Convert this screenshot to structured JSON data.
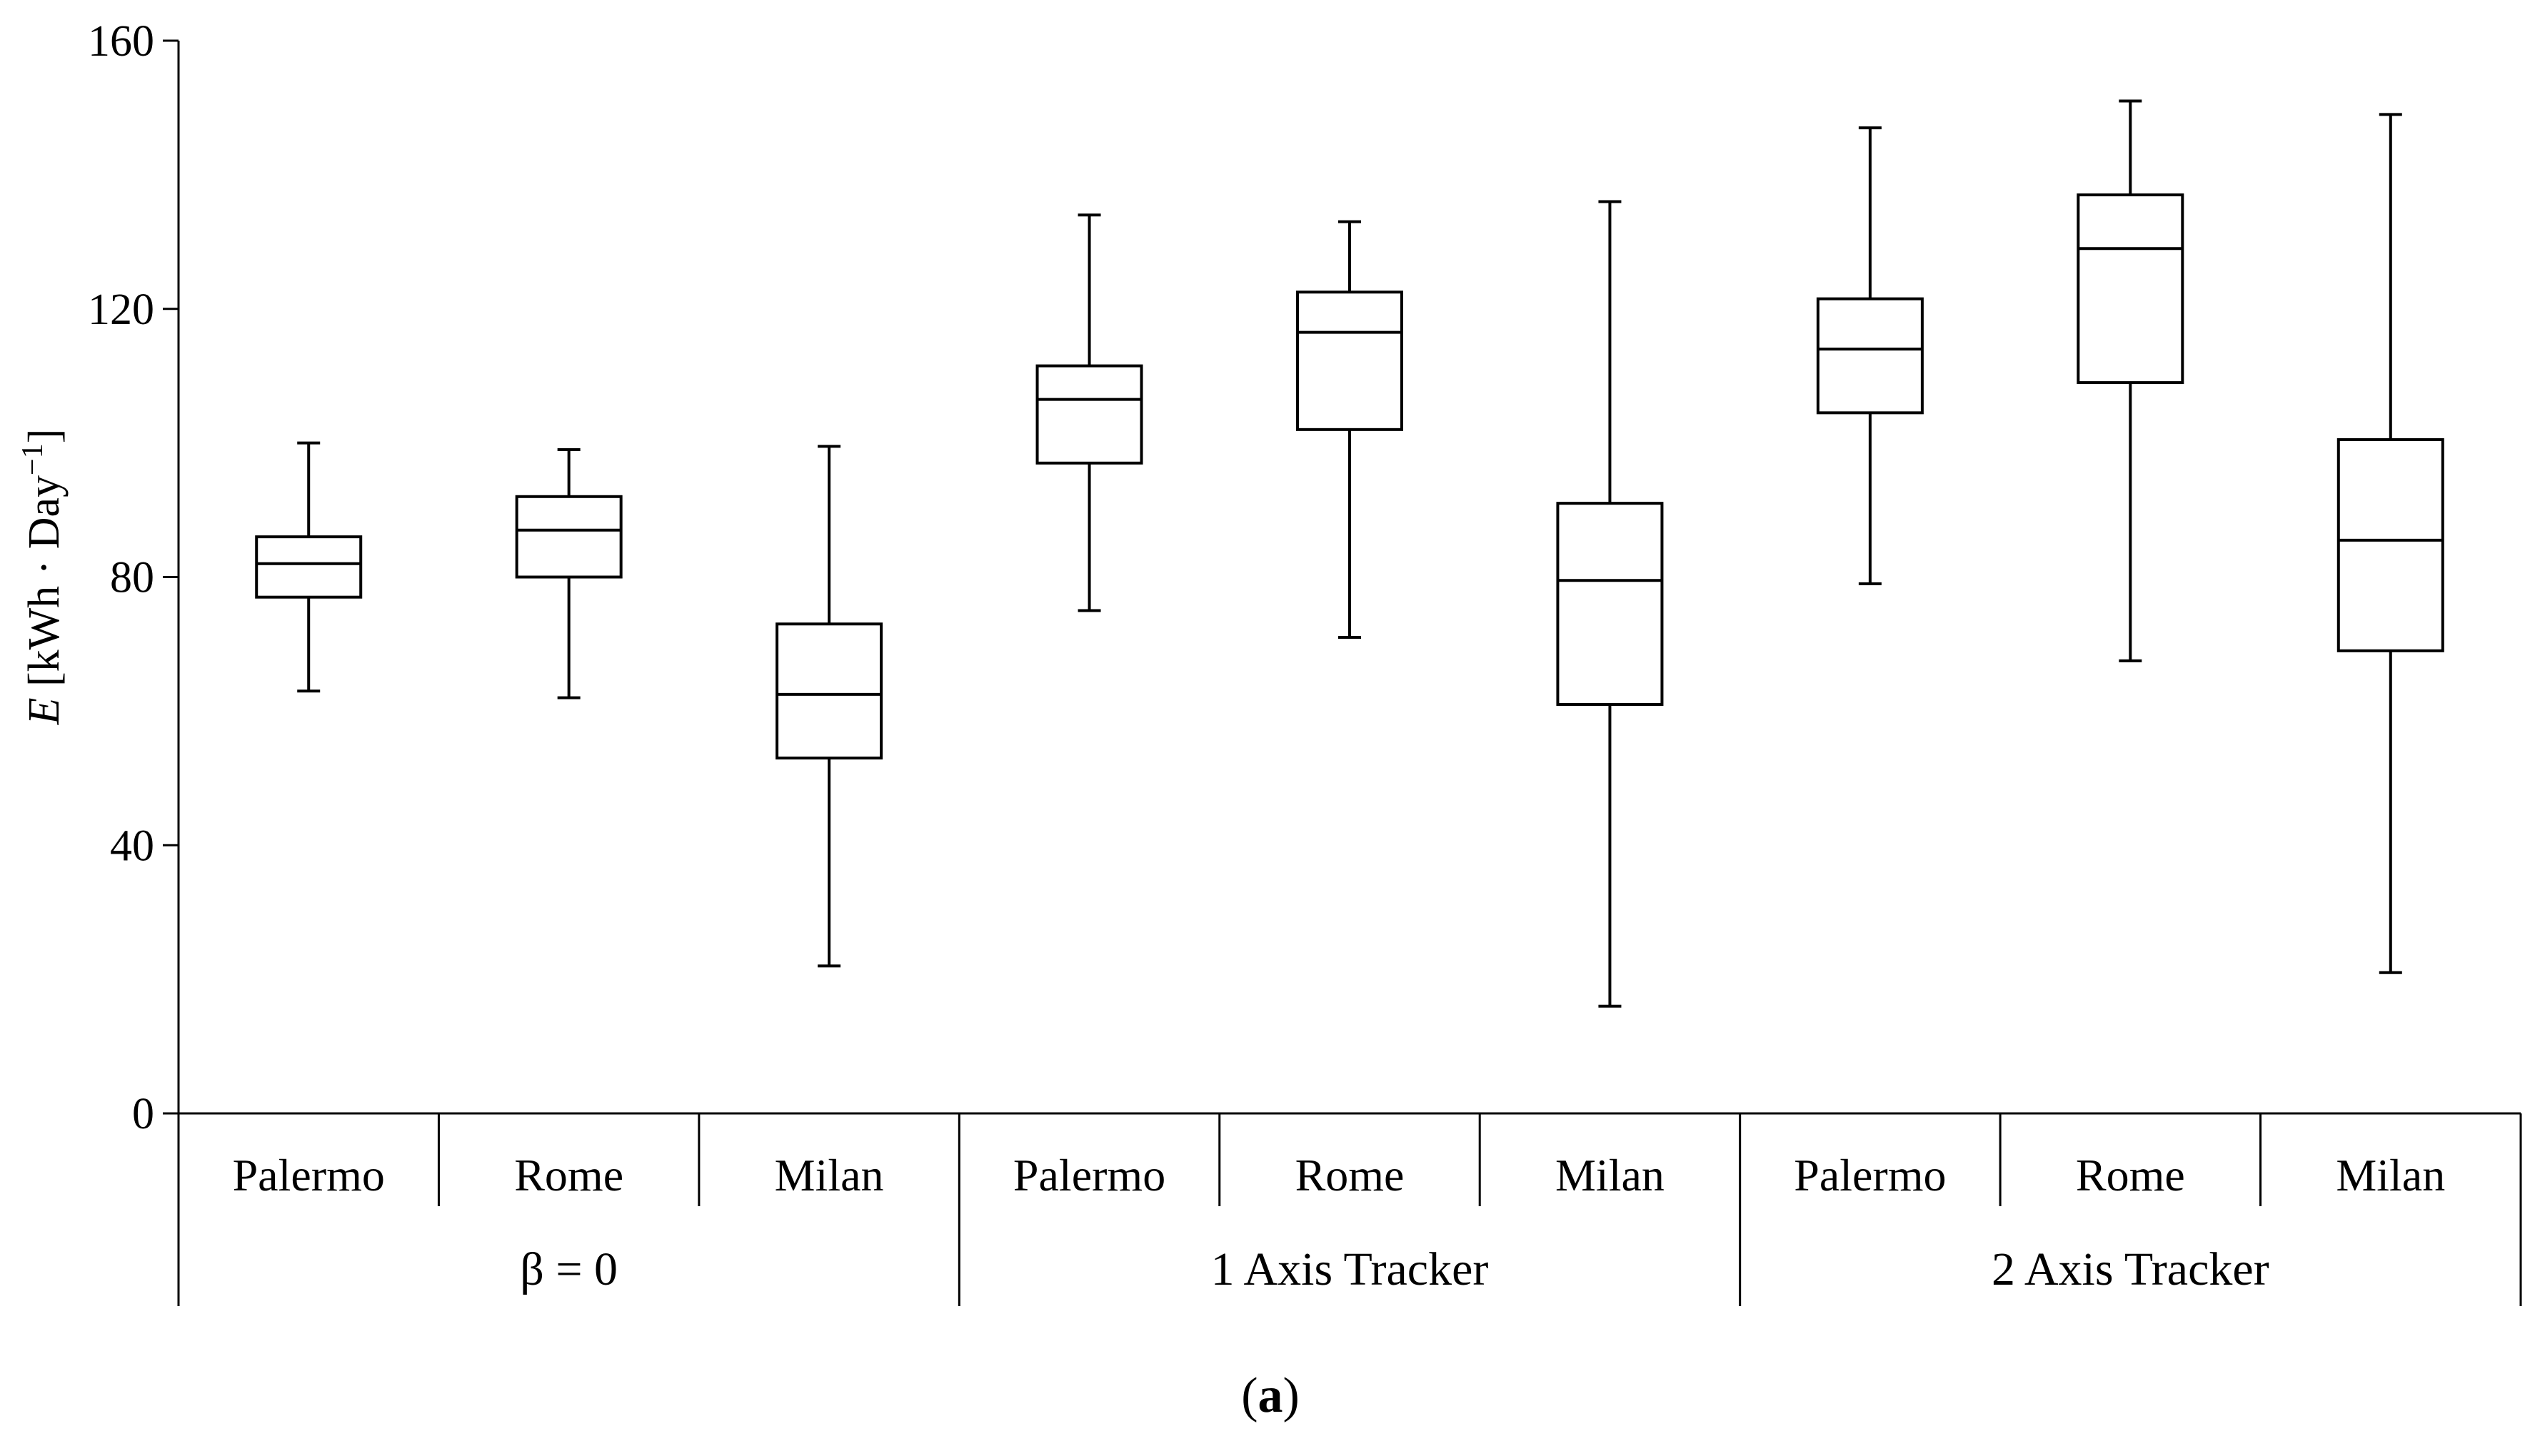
{
  "chart_data": {
    "type": "box",
    "title": "",
    "ylabel_var": "E",
    "ylabel_unit_open": " [kWh · Day",
    "ylabel_sup": "−1",
    "ylabel_close": "]",
    "xlabel": "",
    "ylim": [
      0,
      160
    ],
    "yticks": [
      0,
      40,
      80,
      120,
      160
    ],
    "grid": false,
    "legend": "none",
    "panel_label_open": "(",
    "panel_label_letter": "a",
    "panel_label_close": ")",
    "groups": [
      {
        "label": "β = 0",
        "categories": [
          {
            "label": "Palermo",
            "min": 63,
            "q1": 77,
            "median": 82,
            "q3": 86,
            "max": 100
          },
          {
            "label": "Rome",
            "min": 62,
            "q1": 80,
            "median": 87,
            "q3": 92,
            "max": 99
          },
          {
            "label": "Milan",
            "min": 22,
            "q1": 53,
            "median": 62.5,
            "q3": 73,
            "max": 99.5
          }
        ]
      },
      {
        "label": "1 Axis Tracker",
        "categories": [
          {
            "label": "Palermo",
            "min": 75,
            "q1": 97,
            "median": 106.5,
            "q3": 111.5,
            "max": 134
          },
          {
            "label": "Rome",
            "min": 71,
            "q1": 102,
            "median": 116.5,
            "q3": 122.5,
            "max": 133
          },
          {
            "label": "Milan",
            "min": 16,
            "q1": 61,
            "median": 79.5,
            "q3": 91,
            "max": 136
          }
        ]
      },
      {
        "label": "2 Axis Tracker",
        "categories": [
          {
            "label": "Palermo",
            "min": 79,
            "q1": 104.5,
            "median": 114,
            "q3": 121.5,
            "max": 147
          },
          {
            "label": "Rome",
            "min": 67.5,
            "q1": 109,
            "median": 129,
            "q3": 137,
            "max": 151
          },
          {
            "label": "Milan",
            "min": 21,
            "q1": 69,
            "median": 85.5,
            "q3": 100.5,
            "max": 149
          }
        ]
      }
    ]
  }
}
